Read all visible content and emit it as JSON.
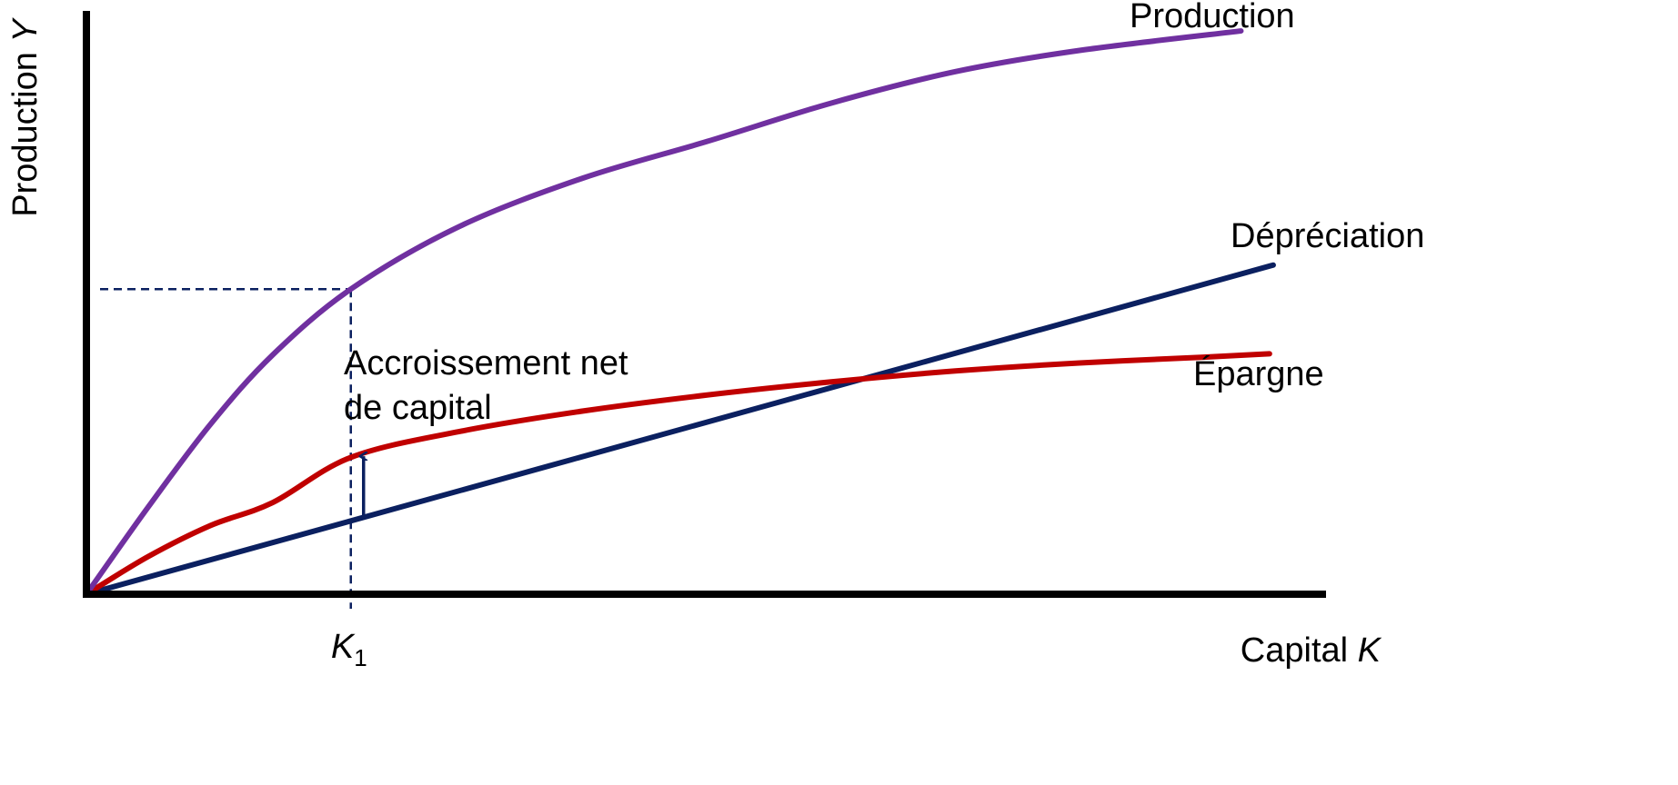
{
  "chart_data": {
    "type": "line",
    "xlabel": {
      "text": "Capital ",
      "var": "K"
    },
    "ylabel": {
      "text": "Production ",
      "var": "Y"
    },
    "tick_labels": {
      "var": "K",
      "sub": "1"
    },
    "x_tick_value": 0.213,
    "xlim": [
      0,
      1
    ],
    "ylim": [
      0,
      1
    ],
    "grid": false,
    "axis_color": "#000000",
    "series": [
      {
        "name": "Production",
        "color": "#7030A0",
        "points": [
          [
            0,
            0
          ],
          [
            0.05,
            0.153
          ],
          [
            0.1,
            0.297
          ],
          [
            0.15,
            0.418
          ],
          [
            0.213,
            0.533
          ],
          [
            0.3,
            0.642
          ],
          [
            0.4,
            0.727
          ],
          [
            0.5,
            0.791
          ],
          [
            0.6,
            0.858
          ],
          [
            0.7,
            0.913
          ],
          [
            0.8,
            0.95
          ],
          [
            0.93,
            0.984
          ]
        ]
      },
      {
        "name": "Dépréciation",
        "color": "#0B2060",
        "points": [
          [
            0,
            0
          ],
          [
            0.956,
            0.575
          ]
        ]
      },
      {
        "name": "Épargne",
        "color": "#C00000",
        "points": [
          [
            0,
            0
          ],
          [
            0.05,
            0.066
          ],
          [
            0.1,
            0.12
          ],
          [
            0.15,
            0.16
          ],
          [
            0.213,
            0.239
          ],
          [
            0.3,
            0.284
          ],
          [
            0.4,
            0.32
          ],
          [
            0.5,
            0.348
          ],
          [
            0.6,
            0.371
          ],
          [
            0.7,
            0.39
          ],
          [
            0.8,
            0.404
          ],
          [
            0.9,
            0.414
          ],
          [
            0.953,
            0.42
          ]
        ]
      }
    ],
    "annotation": {
      "lines": [
        "Accroissement net",
        "de capital"
      ],
      "color": "#0B2060"
    }
  }
}
